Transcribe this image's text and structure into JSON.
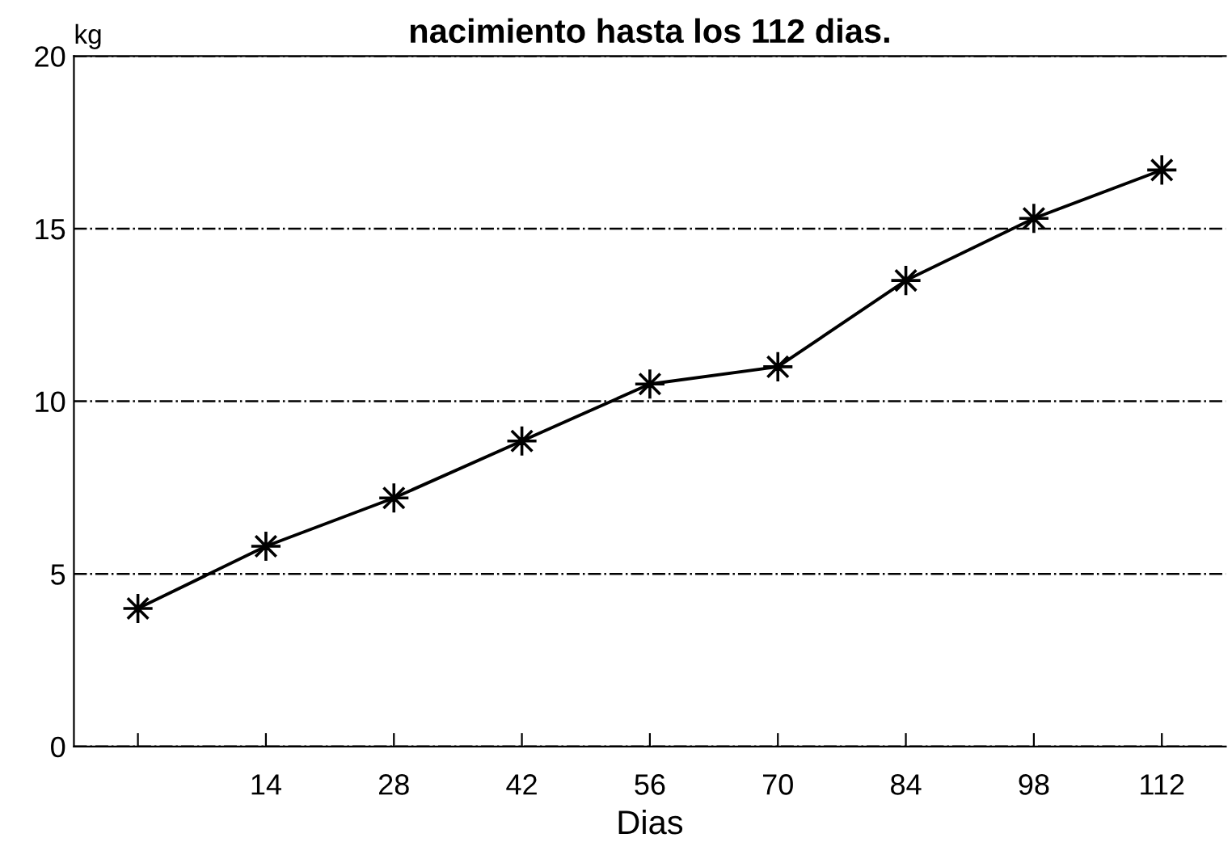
{
  "chart_data": {
    "type": "line",
    "title": "nacimiento hasta los 112 dias.",
    "xlabel": "Dias",
    "ylabel": "kg",
    "x": [
      0,
      14,
      28,
      42,
      56,
      70,
      84,
      98,
      112
    ],
    "series": [
      {
        "color": "#000000",
        "values": [
          4.0,
          5.8,
          7.2,
          8.85,
          10.5,
          11.0,
          13.5,
          15.3,
          16.7
        ]
      }
    ],
    "xlim": [
      -7,
      119
    ],
    "ylim": [
      0,
      20
    ],
    "xticks": [
      {
        "value": 0,
        "label": null
      },
      14,
      28,
      42,
      56,
      70,
      84,
      98,
      112
    ],
    "yticks": [
      0,
      5,
      10,
      15,
      20
    ],
    "grid": "y",
    "marker": "star",
    "line_style": "solid"
  }
}
